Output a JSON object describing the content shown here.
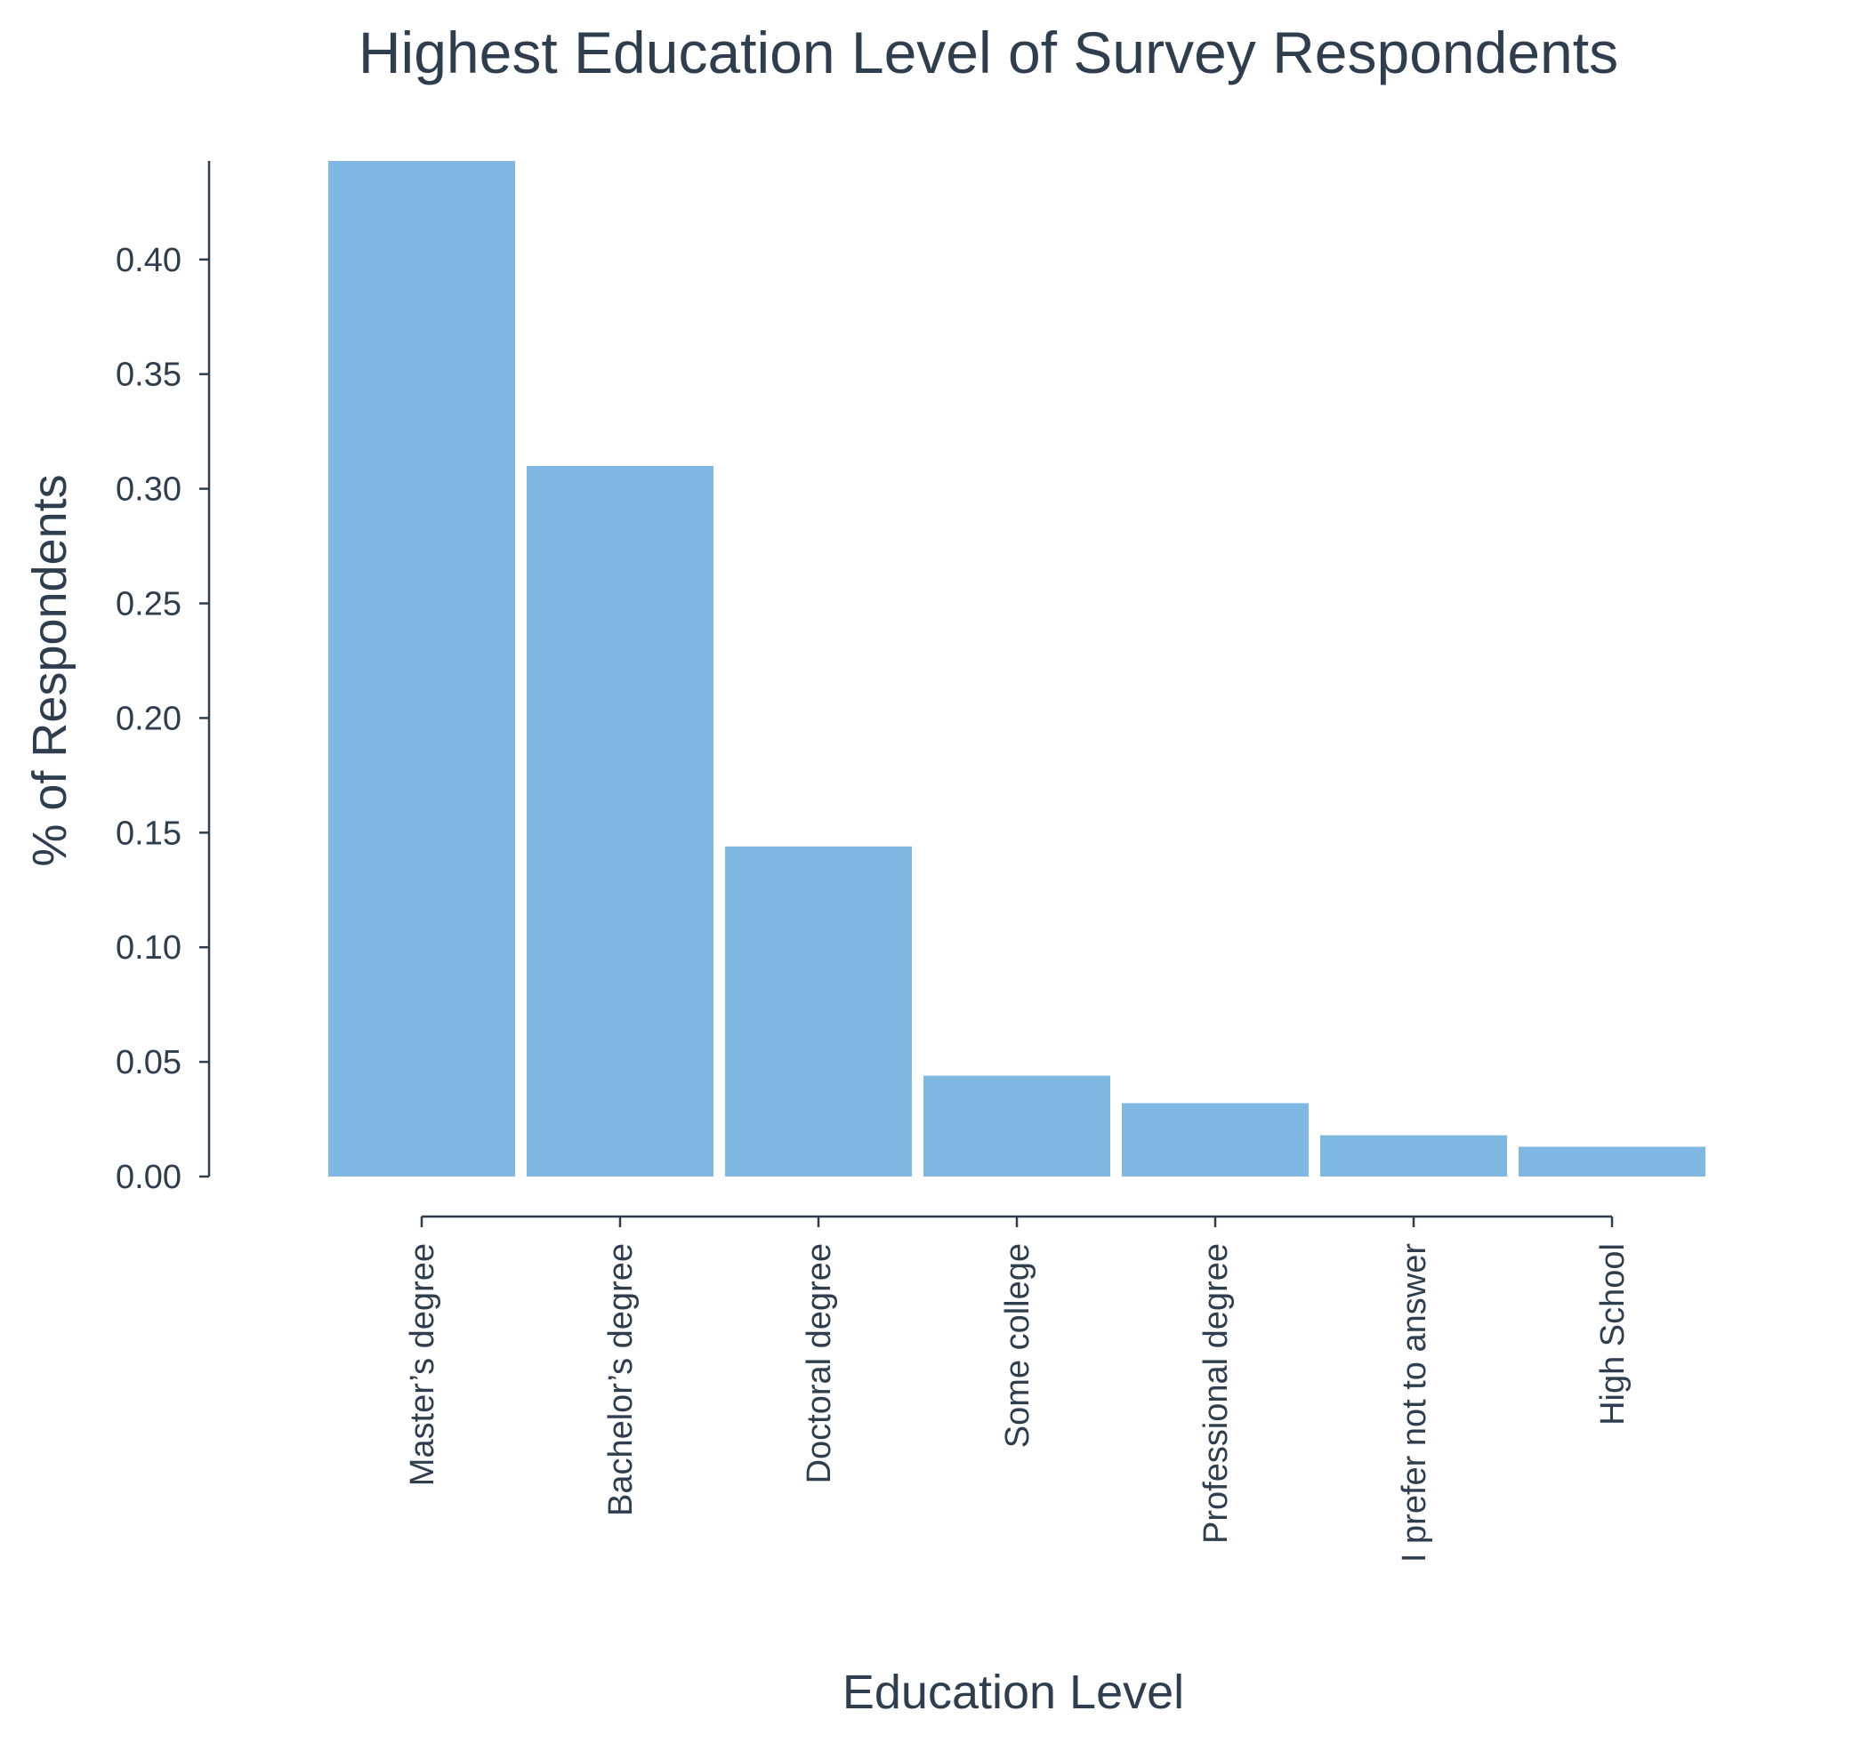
{
  "chart_data": {
    "type": "bar",
    "title": "Highest Education Level of Survey Respondents",
    "xlabel": "Education Level",
    "ylabel": "% of Respondents",
    "categories": [
      "Master’s degree",
      "Bachelor’s degree",
      "Doctoral degree",
      "Some college",
      "Professional degree",
      "I prefer not to answer",
      "High School"
    ],
    "values": [
      0.443,
      0.31,
      0.144,
      0.044,
      0.032,
      0.018,
      0.013
    ],
    "yticks": [
      "0.00",
      "0.05",
      "0.10",
      "0.15",
      "0.20",
      "0.25",
      "0.30",
      "0.35",
      "0.40"
    ],
    "ytick_values": [
      0,
      0.05,
      0.1,
      0.15,
      0.2,
      0.25,
      0.3,
      0.35,
      0.4
    ],
    "ylim": [
      0,
      0.443
    ],
    "grid": false,
    "legend": "none",
    "colors": {
      "bar": "#7fb9e3",
      "text": "#2f3e4e",
      "axis": "#2f3e4e",
      "background": "#ffffff"
    }
  }
}
